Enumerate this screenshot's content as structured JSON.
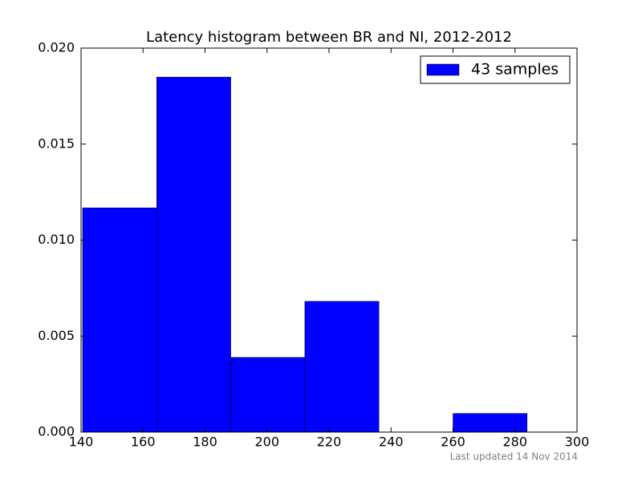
{
  "chart_data": {
    "type": "histogram",
    "title": "Latency histogram between BR and NI, 2012-2012",
    "bins": [
      140.5,
      164.4,
      188.3,
      212.2,
      236.1,
      260.0,
      283.9
    ],
    "series": [
      {
        "name": "43 samples",
        "color": "#0000ff",
        "values": [
          0.01168,
          0.01849,
          0.00389,
          0.00681,
          0,
          0.00097
        ]
      }
    ],
    "xlim": [
      140,
      300
    ],
    "xticks": [
      140,
      160,
      180,
      200,
      220,
      240,
      260,
      280,
      300
    ],
    "ylim": [
      0,
      0.02
    ],
    "yticks": [
      {
        "value": 0,
        "label": "0.000"
      },
      {
        "value": 0.005,
        "label": "0.005"
      },
      {
        "value": 0.01,
        "label": "0.010"
      },
      {
        "value": 0.015,
        "label": "0.015"
      },
      {
        "value": 0.02,
        "label": "0.020"
      }
    ],
    "legend": "upper right",
    "grid": false,
    "footnote": "Last updated 14 Nov 2014"
  }
}
